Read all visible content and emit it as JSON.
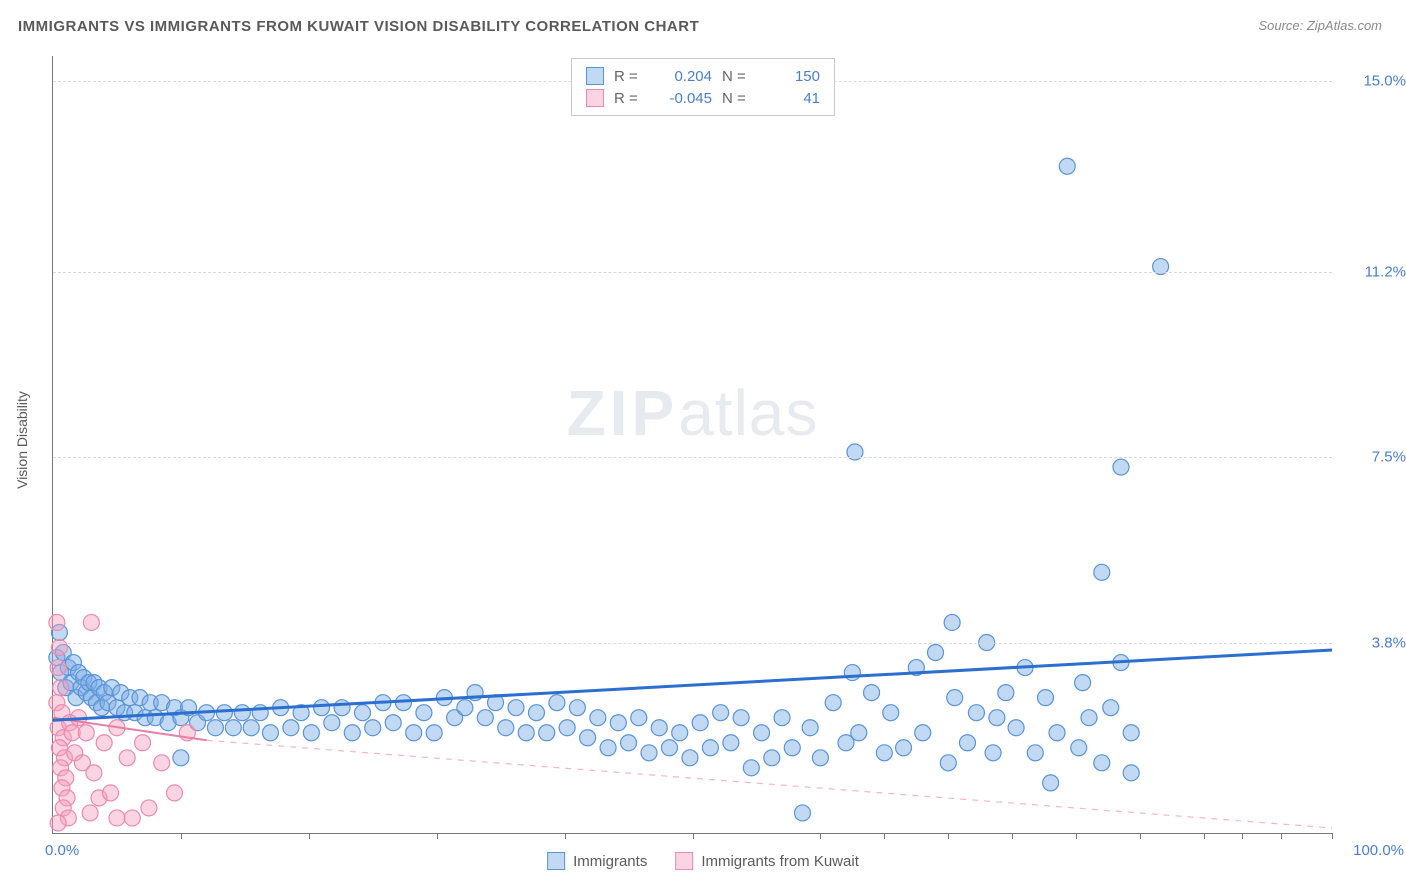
{
  "title": "IMMIGRANTS VS IMMIGRANTS FROM KUWAIT VISION DISABILITY CORRELATION CHART",
  "source": "Source: ZipAtlas.com",
  "ylabel": "Vision Disability",
  "watermark_bold": "ZIP",
  "watermark_light": "atlas",
  "chart": {
    "type": "scatter",
    "xlim": [
      0,
      100
    ],
    "ylim": [
      0,
      15.5
    ],
    "x_axis_label_left": "0.0%",
    "x_axis_label_right": "100.0%",
    "y_gridlines": [
      3.8,
      7.5,
      11.2,
      15.0
    ],
    "y_tick_labels": [
      "3.8%",
      "7.5%",
      "11.2%",
      "15.0%"
    ],
    "x_ticks": [
      10,
      20,
      30,
      40,
      50,
      60,
      65,
      70,
      75,
      80,
      85,
      90,
      93,
      96,
      100
    ],
    "background_color": "#ffffff",
    "grid_color": "#d9d9d9",
    "axis_color": "#777777",
    "marker_radius": 8,
    "marker_stroke_width": 1.2,
    "series": [
      {
        "name": "Immigrants",
        "fill": "rgba(120,170,230,0.45)",
        "stroke": "#5a94d6",
        "trend": {
          "x1": 0,
          "y1": 2.25,
          "x2": 100,
          "y2": 3.65,
          "color": "#2b6fd1",
          "width": 3,
          "dash": ""
        },
        "R": "0.204",
        "N": "150",
        "points": [
          [
            0.3,
            3.5
          ],
          [
            0.5,
            4.0
          ],
          [
            0.6,
            3.2
          ],
          [
            0.8,
            3.6
          ],
          [
            1.0,
            2.9
          ],
          [
            1.2,
            3.3
          ],
          [
            1.4,
            3.0
          ],
          [
            1.6,
            3.4
          ],
          [
            1.8,
            2.7
          ],
          [
            2.0,
            3.2
          ],
          [
            2.2,
            2.9
          ],
          [
            2.4,
            3.1
          ],
          [
            2.6,
            2.8
          ],
          [
            2.8,
            3.0
          ],
          [
            3.0,
            2.7
          ],
          [
            3.2,
            3.0
          ],
          [
            3.4,
            2.6
          ],
          [
            3.6,
            2.9
          ],
          [
            3.8,
            2.5
          ],
          [
            4.0,
            2.8
          ],
          [
            4.3,
            2.6
          ],
          [
            4.6,
            2.9
          ],
          [
            5.0,
            2.5
          ],
          [
            5.3,
            2.8
          ],
          [
            5.6,
            2.4
          ],
          [
            6.0,
            2.7
          ],
          [
            6.4,
            2.4
          ],
          [
            6.8,
            2.7
          ],
          [
            7.2,
            2.3
          ],
          [
            7.6,
            2.6
          ],
          [
            8.0,
            2.3
          ],
          [
            8.5,
            2.6
          ],
          [
            9.0,
            2.2
          ],
          [
            9.5,
            2.5
          ],
          [
            10.0,
            2.3
          ],
          [
            10.6,
            2.5
          ],
          [
            10.0,
            1.5
          ],
          [
            11.3,
            2.2
          ],
          [
            12.0,
            2.4
          ],
          [
            12.7,
            2.1
          ],
          [
            13.4,
            2.4
          ],
          [
            14.1,
            2.1
          ],
          [
            14.8,
            2.4
          ],
          [
            15.5,
            2.1
          ],
          [
            16.2,
            2.4
          ],
          [
            17.0,
            2.0
          ],
          [
            17.8,
            2.5
          ],
          [
            18.6,
            2.1
          ],
          [
            19.4,
            2.4
          ],
          [
            20.2,
            2.0
          ],
          [
            21.0,
            2.5
          ],
          [
            21.8,
            2.2
          ],
          [
            22.6,
            2.5
          ],
          [
            23.4,
            2.0
          ],
          [
            24.2,
            2.4
          ],
          [
            25.0,
            2.1
          ],
          [
            25.8,
            2.6
          ],
          [
            26.6,
            2.2
          ],
          [
            27.4,
            2.6
          ],
          [
            28.2,
            2.0
          ],
          [
            29.0,
            2.4
          ],
          [
            29.8,
            2.0
          ],
          [
            30.6,
            2.7
          ],
          [
            31.4,
            2.3
          ],
          [
            32.2,
            2.5
          ],
          [
            33.0,
            2.8
          ],
          [
            33.8,
            2.3
          ],
          [
            34.6,
            2.6
          ],
          [
            35.4,
            2.1
          ],
          [
            36.2,
            2.5
          ],
          [
            37.0,
            2.0
          ],
          [
            37.8,
            2.4
          ],
          [
            38.6,
            2.0
          ],
          [
            39.4,
            2.6
          ],
          [
            40.2,
            2.1
          ],
          [
            41.0,
            2.5
          ],
          [
            41.8,
            1.9
          ],
          [
            42.6,
            2.3
          ],
          [
            43.4,
            1.7
          ],
          [
            44.2,
            2.2
          ],
          [
            45.0,
            1.8
          ],
          [
            45.8,
            2.3
          ],
          [
            46.6,
            1.6
          ],
          [
            47.4,
            2.1
          ],
          [
            48.2,
            1.7
          ],
          [
            49.0,
            2.0
          ],
          [
            49.8,
            1.5
          ],
          [
            50.6,
            2.2
          ],
          [
            51.4,
            1.7
          ],
          [
            52.2,
            2.4
          ],
          [
            53.0,
            1.8
          ],
          [
            53.8,
            2.3
          ],
          [
            54.6,
            1.3
          ],
          [
            55.4,
            2.0
          ],
          [
            56.2,
            1.5
          ],
          [
            57.0,
            2.3
          ],
          [
            57.8,
            1.7
          ],
          [
            58.6,
            0.4
          ],
          [
            59.2,
            2.1
          ],
          [
            60.0,
            1.5
          ],
          [
            61.0,
            2.6
          ],
          [
            62.0,
            1.8
          ],
          [
            62.5,
            3.2
          ],
          [
            62.7,
            7.6
          ],
          [
            63.0,
            2.0
          ],
          [
            64.0,
            2.8
          ],
          [
            65.0,
            1.6
          ],
          [
            65.5,
            2.4
          ],
          [
            66.5,
            1.7
          ],
          [
            67.5,
            3.3
          ],
          [
            68.0,
            2.0
          ],
          [
            69.0,
            3.6
          ],
          [
            70.0,
            1.4
          ],
          [
            70.5,
            2.7
          ],
          [
            70.3,
            4.2
          ],
          [
            71.5,
            1.8
          ],
          [
            72.2,
            2.4
          ],
          [
            73.0,
            3.8
          ],
          [
            73.5,
            1.6
          ],
          [
            73.8,
            2.3
          ],
          [
            74.5,
            2.8
          ],
          [
            75.3,
            2.1
          ],
          [
            76.0,
            3.3
          ],
          [
            76.8,
            1.6
          ],
          [
            77.6,
            2.7
          ],
          [
            78.0,
            1.0
          ],
          [
            78.5,
            2.0
          ],
          [
            79.3,
            13.3
          ],
          [
            80.2,
            1.7
          ],
          [
            80.5,
            3.0
          ],
          [
            81.0,
            2.3
          ],
          [
            82.0,
            5.2
          ],
          [
            82.0,
            1.4
          ],
          [
            82.7,
            2.5
          ],
          [
            83.5,
            7.3
          ],
          [
            83.5,
            3.4
          ],
          [
            84.3,
            2.0
          ],
          [
            84.3,
            1.2
          ],
          [
            86.6,
            11.3
          ]
        ]
      },
      {
        "name": "Immigrants from Kuwait",
        "fill": "rgba(245,160,190,0.45)",
        "stroke": "#e98bb0",
        "trend_solid": {
          "x1": 0,
          "y1": 2.3,
          "x2": 12,
          "y2": 1.85,
          "color": "#e87da6",
          "width": 2
        },
        "trend_dashed": {
          "x1": 12,
          "y1": 1.85,
          "x2": 100,
          "y2": 0.1,
          "color": "#f1b6cb",
          "width": 1.2,
          "dash": "6 6"
        },
        "R": "-0.045",
        "N": "41",
        "points": [
          [
            0.3,
            4.2
          ],
          [
            0.5,
            3.7
          ],
          [
            0.4,
            3.3
          ],
          [
            0.6,
            2.9
          ],
          [
            0.3,
            2.6
          ],
          [
            0.7,
            2.4
          ],
          [
            0.4,
            2.1
          ],
          [
            0.8,
            1.9
          ],
          [
            0.5,
            1.7
          ],
          [
            0.9,
            1.5
          ],
          [
            0.6,
            1.3
          ],
          [
            1.0,
            1.1
          ],
          [
            0.7,
            0.9
          ],
          [
            1.1,
            0.7
          ],
          [
            0.8,
            0.5
          ],
          [
            1.2,
            0.3
          ],
          [
            0.4,
            0.2
          ],
          [
            1.3,
            2.2
          ],
          [
            1.5,
            2.0
          ],
          [
            1.7,
            1.6
          ],
          [
            2.0,
            2.3
          ],
          [
            2.3,
            1.4
          ],
          [
            2.6,
            2.0
          ],
          [
            2.9,
            0.4
          ],
          [
            3.2,
            1.2
          ],
          [
            3.6,
            0.7
          ],
          [
            4.0,
            1.8
          ],
          [
            4.5,
            0.8
          ],
          [
            5.0,
            2.1
          ],
          [
            5.0,
            0.3
          ],
          [
            5.8,
            1.5
          ],
          [
            6.2,
            0.3
          ],
          [
            7.0,
            1.8
          ],
          [
            7.5,
            0.5
          ],
          [
            8.5,
            1.4
          ],
          [
            9.5,
            0.8
          ],
          [
            10.5,
            2.0
          ],
          [
            3.0,
            4.2
          ]
        ]
      }
    ]
  },
  "legend_top": {
    "rows": [
      {
        "swatch_fill": "rgba(120,170,230,0.45)",
        "swatch_stroke": "#5a94d6",
        "R_label": "R =",
        "R": "0.204",
        "N_label": "N =",
        "N": "150"
      },
      {
        "swatch_fill": "rgba(245,160,190,0.45)",
        "swatch_stroke": "#e98bb0",
        "R_label": "R =",
        "R": "-0.045",
        "N_label": "N =",
        "N": "41"
      }
    ]
  },
  "legend_bottom": {
    "items": [
      {
        "swatch_fill": "rgba(120,170,230,0.45)",
        "swatch_stroke": "#5a94d6",
        "label": "Immigrants"
      },
      {
        "swatch_fill": "rgba(245,160,190,0.45)",
        "swatch_stroke": "#e98bb0",
        "label": "Immigrants from Kuwait"
      }
    ]
  }
}
